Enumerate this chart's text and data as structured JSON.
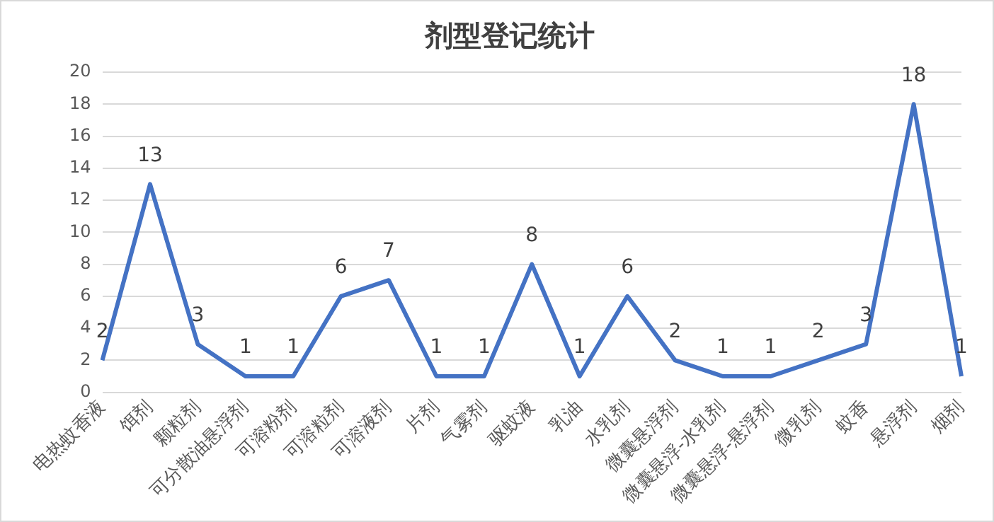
{
  "chart_data": {
    "type": "line",
    "title": "剂型登记统计",
    "categories": [
      "电热蚊香液",
      "饵剂",
      "颗粒剂",
      "可分散油悬浮剂",
      "可溶粉剂",
      "可溶粒剂",
      "可溶液剂",
      "片剂",
      "气雾剂",
      "驱蚊液",
      "乳油",
      "水乳剂",
      "微囊悬浮剂",
      "微囊悬浮-水乳剂",
      "微囊悬浮-悬浮剂",
      "微乳剂",
      "蚊香",
      "悬浮剂",
      "烟剂"
    ],
    "series": [
      {
        "color": "#4472c4",
        "values": [
          2,
          13,
          3,
          1,
          1,
          6,
          7,
          1,
          1,
          8,
          1,
          6,
          2,
          1,
          1,
          2,
          3,
          18,
          1
        ]
      }
    ],
    "ylim": [
      0,
      20
    ],
    "yticks": [
      0,
      2,
      4,
      6,
      8,
      10,
      12,
      14,
      16,
      18,
      20
    ],
    "grid": "y",
    "legend": false,
    "marker": "none",
    "line_style": "solid",
    "data_labels": true
  }
}
